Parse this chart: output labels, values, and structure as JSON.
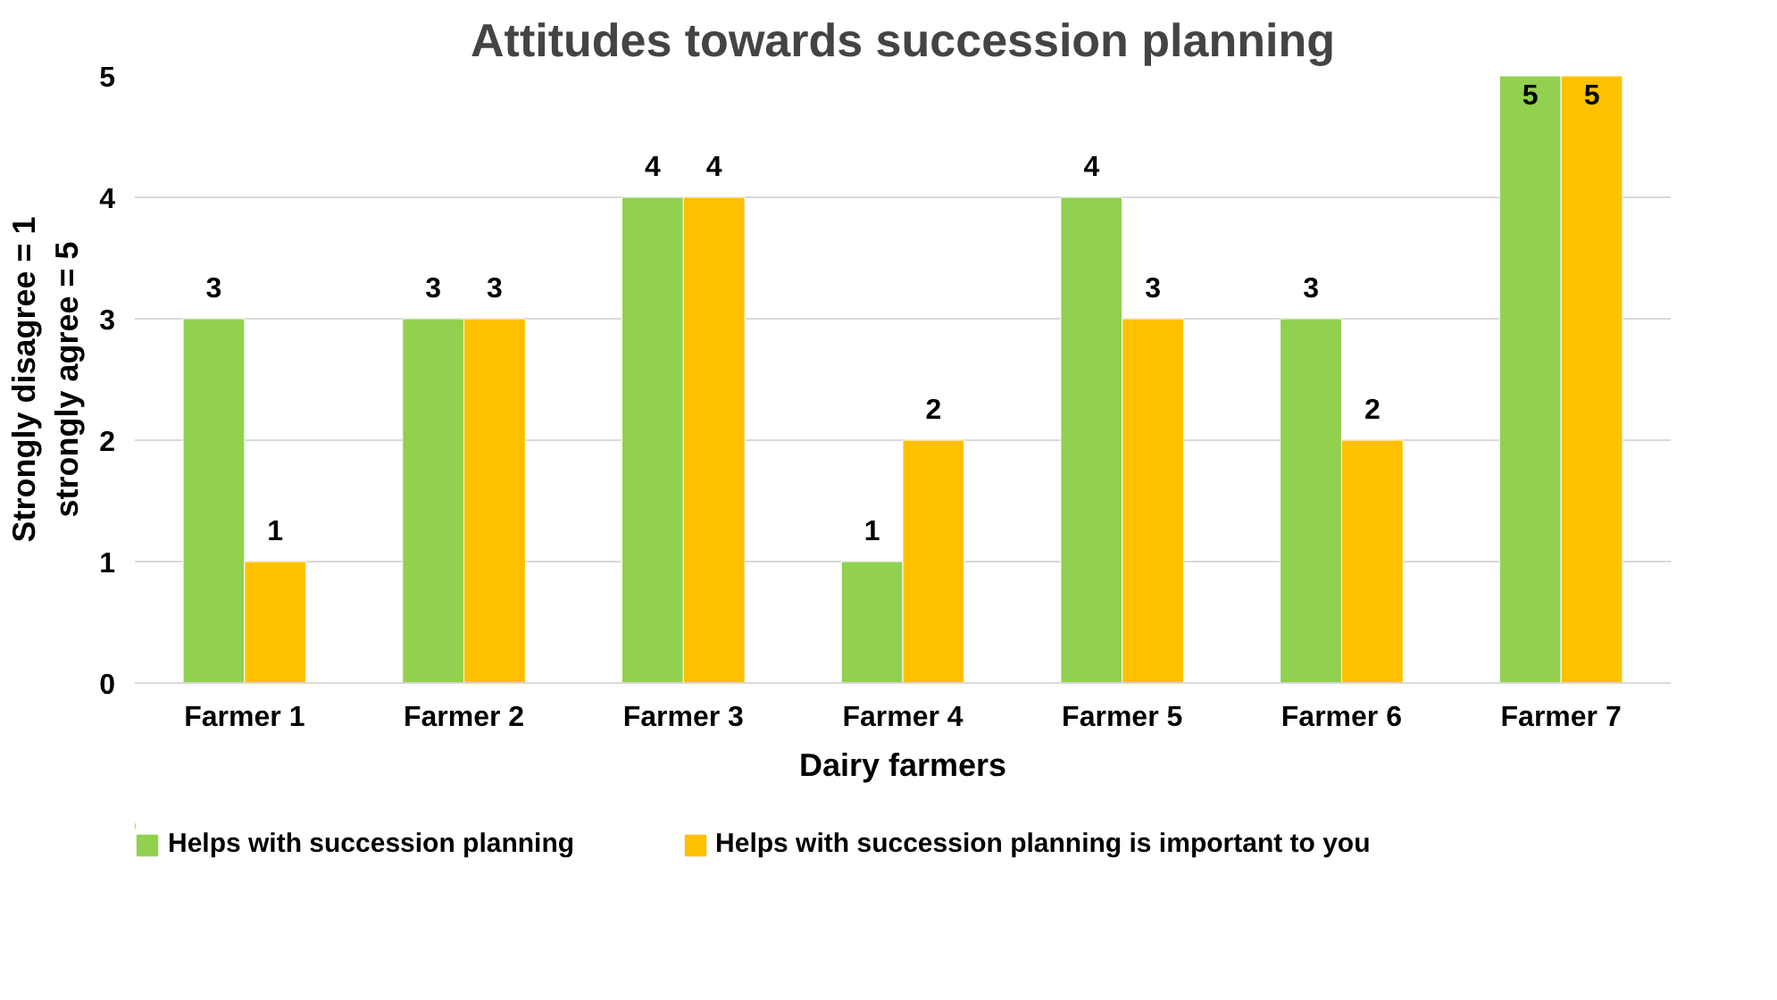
{
  "chart_data": {
    "type": "bar",
    "title": "Attitudes towards succession planning",
    "xlabel": "Dairy farmers",
    "ylabel": "Strongly disagree = 1\nstrongly agree = 5",
    "categories": [
      "Farmer 1",
      "Farmer 2",
      "Farmer 3",
      "Farmer 4",
      "Farmer 5",
      "Farmer 6",
      "Farmer 7"
    ],
    "series": [
      {
        "name": "Helps with succession planning",
        "color": "#92d050",
        "values": [
          3,
          3,
          4,
          1,
          4,
          3,
          5
        ]
      },
      {
        "name": "Helps with succession planning is important to you",
        "color": "#ffc000",
        "values": [
          1,
          3,
          4,
          2,
          3,
          2,
          5
        ]
      }
    ],
    "ylim": [
      0,
      5
    ],
    "yticks": [
      0,
      1,
      2,
      3,
      4,
      5
    ],
    "grid": "y",
    "legend": "bottom",
    "data_labels": true
  }
}
